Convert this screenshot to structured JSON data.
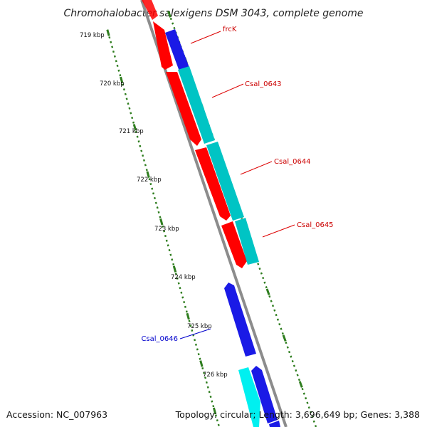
{
  "title": "Chromohalobacter salexigens DSM 3043, complete genome",
  "footer": {
    "accession": "Accession: NC_007963",
    "topology": "Topology: circular; Length: 3,696,649 bp; Genes: 3,388"
  },
  "colors": {
    "backbone": "#8c8c8c",
    "tick": "#2e7d1e",
    "forward_cds": "#ff0000",
    "reverse_cds": "#0000e0",
    "forward_rna": "#00c4c4",
    "reverse_rna": "#00f0f0",
    "label_forward": "#cc0000",
    "label_reverse": "#0000cc"
  },
  "scale": {
    "tick_labels": [
      "719 kbp",
      "720 kbp",
      "721 kbp",
      "722 kbp",
      "723 kbp",
      "724 kbp",
      "725 kbp",
      "726 kbp"
    ]
  },
  "gene_labels": [
    {
      "name": "frcK",
      "strand": "forward"
    },
    {
      "name": "Csal_0643",
      "strand": "forward"
    },
    {
      "name": "Csal_0644",
      "strand": "forward"
    },
    {
      "name": "Csal_0645",
      "strand": "forward"
    },
    {
      "name": "Csal_0646",
      "strand": "reverse"
    }
  ]
}
